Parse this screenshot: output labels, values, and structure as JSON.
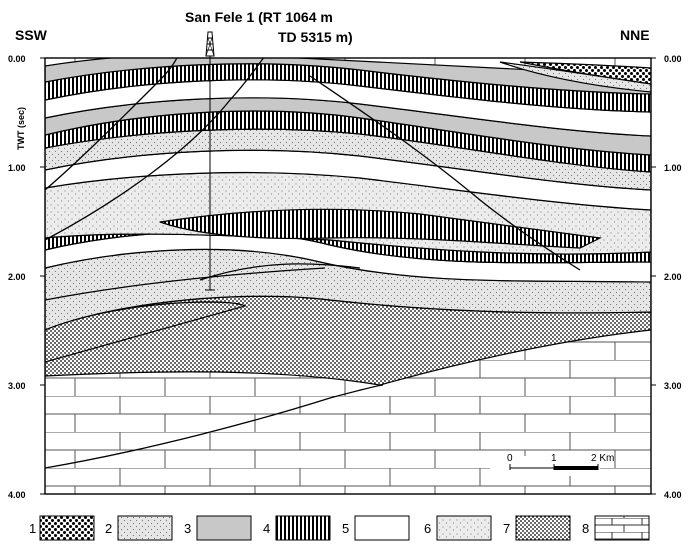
{
  "header": {
    "left_direction": "SSW",
    "right_direction": "NNE",
    "well_line1": "San Fele 1 (RT 1064 m",
    "well_line2": "TD 5315 m)"
  },
  "axis": {
    "ylabel": "TWT (sec)",
    "ticks": [
      "0.00",
      "1.00",
      "2.00",
      "3.00",
      "4.00"
    ]
  },
  "scale_bar": {
    "labels": [
      "0",
      "1",
      "2 Km"
    ]
  },
  "legend": {
    "items": [
      {
        "number": "1",
        "pattern": "coarse-dots"
      },
      {
        "number": "2",
        "pattern": "fine-stipple"
      },
      {
        "number": "3",
        "pattern": "gray-fill"
      },
      {
        "number": "4",
        "pattern": "vertical-hatch"
      },
      {
        "number": "5",
        "pattern": "blank"
      },
      {
        "number": "6",
        "pattern": "light-stipple"
      },
      {
        "number": "7",
        "pattern": "dense-dots"
      },
      {
        "number": "8",
        "pattern": "brick"
      }
    ]
  },
  "colors": {
    "gray_unit": "#c8c8c8",
    "stipple_bg": "#e6e6e6",
    "line": "#000000"
  }
}
